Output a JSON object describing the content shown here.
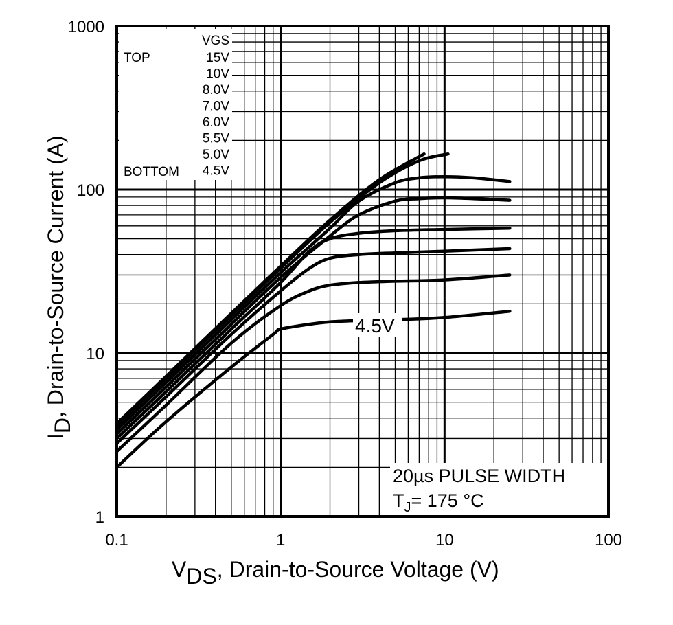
{
  "chart_data": {
    "type": "line",
    "x_scale": "log",
    "y_scale": "log",
    "xlim": [
      0.1,
      100
    ],
    "ylim": [
      1,
      1000
    ],
    "grid": true,
    "x_ticks": [
      "0.1",
      "1",
      "10",
      "100"
    ],
    "y_ticks": [
      "1",
      "10",
      "100",
      "1000"
    ],
    "xlabel": {
      "main": "V",
      "sub": "DS",
      "rest": ", Drain-to-Source Voltage (V)"
    },
    "ylabel": {
      "main": "I",
      "sub": "D",
      "rest": ",   Drain-to-Source Current (A)"
    },
    "legend": {
      "placement": "top-left",
      "header": "VGS",
      "top_label": "TOP",
      "bottom_label": "BOTTOM",
      "entries": [
        "15V",
        "10V",
        "8.0V",
        "7.0V",
        "6.0V",
        "5.5V",
        "5.0V",
        "4.5V"
      ]
    },
    "annotation": {
      "line1": "20µs PULSE WIDTH",
      "line2_main": "T",
      "line2_sub": "J",
      "line2_rest": "= 175 °C"
    },
    "curve_label": "4.5V",
    "series": [
      {
        "name": "15V",
        "x": [
          0.1,
          0.2,
          0.5,
          1,
          2,
          4,
          7.5
        ],
        "y": [
          3.7,
          7.2,
          17.5,
          34,
          65,
          115,
          165
        ]
      },
      {
        "name": "10V",
        "x": [
          0.1,
          0.2,
          0.5,
          1,
          2,
          4,
          7,
          10.5
        ],
        "y": [
          3.6,
          7.0,
          17,
          33,
          63,
          110,
          150,
          165
        ]
      },
      {
        "name": "8.0V",
        "x": [
          0.1,
          0.2,
          0.5,
          1,
          2,
          3,
          5,
          7,
          10,
          15,
          25
        ],
        "y": [
          3.4,
          6.6,
          16,
          31,
          58,
          85,
          110,
          118,
          120,
          118,
          112
        ]
      },
      {
        "name": "7.0V",
        "x": [
          0.1,
          0.2,
          0.5,
          1,
          2,
          3,
          5,
          7,
          10,
          15,
          25
        ],
        "y": [
          3.2,
          6.2,
          15,
          29,
          52,
          70,
          85,
          88,
          89,
          88,
          86
        ]
      },
      {
        "name": "6.0V",
        "x": [
          0.1,
          0.2,
          0.5,
          1,
          1.5,
          2,
          3,
          5,
          10,
          25
        ],
        "y": [
          3.0,
          5.8,
          14,
          27,
          42,
          50,
          54,
          56,
          57,
          58
        ]
      },
      {
        "name": "5.5V",
        "x": [
          0.1,
          0.2,
          0.5,
          1,
          1.5,
          2,
          3,
          5,
          10,
          25
        ],
        "y": [
          2.8,
          5.4,
          13,
          24,
          33,
          38,
          40,
          41,
          42,
          43.5
        ]
      },
      {
        "name": "5.0V",
        "x": [
          0.1,
          0.2,
          0.5,
          1,
          1.5,
          2,
          3,
          5,
          10,
          25
        ],
        "y": [
          2.5,
          4.8,
          11.5,
          19.5,
          24,
          26,
          27,
          27.5,
          28,
          30
        ]
      },
      {
        "name": "4.5V",
        "x": [
          0.1,
          0.2,
          0.5,
          0.9,
          1,
          1.5,
          2,
          3,
          5,
          10,
          25
        ],
        "y": [
          2.0,
          3.8,
          8.2,
          13,
          14,
          15,
          15.5,
          15.8,
          16,
          16.5,
          18
        ]
      }
    ],
    "colors": {
      "line": "#000000",
      "grid": "#000000",
      "background": "#ffffff"
    }
  }
}
